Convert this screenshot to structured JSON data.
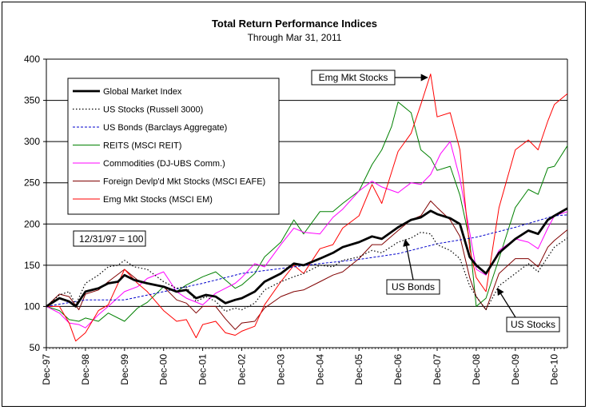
{
  "chart_data": {
    "type": "line",
    "title": "Total Return Performance Indices",
    "subtitle": "Through Mar 31, 2011",
    "xlabel": "",
    "ylabel": "",
    "ylim": [
      50,
      400
    ],
    "yticks": [
      50,
      100,
      150,
      200,
      250,
      300,
      350,
      400
    ],
    "xlim": [
      1997.917,
      2011.25
    ],
    "xticks": [
      "Dec-97",
      "Dec-98",
      "Dec-99",
      "Dec-00",
      "Dec-01",
      "Dec-02",
      "Dec-03",
      "Dec-04",
      "Dec-05",
      "Dec-06",
      "Dec-07",
      "Dec-08",
      "Dec-09",
      "Dec-10"
    ],
    "grid": "horizontal",
    "legend_position": "upper-left",
    "base_note": "12/31/97 = 100",
    "series": [
      {
        "name": "Global Market Index",
        "color": "#000000",
        "style": "bold",
        "x": [
          1997.917,
          1998.25,
          1998.5,
          1998.667,
          1998.917,
          1999.25,
          1999.5,
          1999.75,
          1999.917,
          2000.167,
          2000.5,
          2000.917,
          2001.25,
          2001.5,
          2001.75,
          2002.0,
          2002.25,
          2002.5,
          2002.75,
          2002.917,
          2003.25,
          2003.5,
          2003.917,
          2004.25,
          2004.5,
          2004.917,
          2005.25,
          2005.5,
          2005.917,
          2006.25,
          2006.5,
          2006.917,
          2007.25,
          2007.5,
          2007.75,
          2007.917,
          2008.25,
          2008.5,
          2008.75,
          2008.917,
          2009.167,
          2009.5,
          2009.917,
          2010.25,
          2010.5,
          2010.75,
          2010.917,
          2011.25
        ],
        "y": [
          100,
          110,
          106,
          100,
          118,
          122,
          128,
          130,
          138,
          132,
          128,
          124,
          118,
          120,
          110,
          114,
          112,
          104,
          108,
          110,
          118,
          130,
          140,
          152,
          150,
          158,
          165,
          172,
          178,
          185,
          182,
          196,
          205,
          208,
          216,
          212,
          207,
          200,
          160,
          150,
          140,
          165,
          182,
          192,
          188,
          205,
          210,
          219
        ]
      },
      {
        "name": "US Stocks (Russell 3000)",
        "color": "#000000",
        "style": "dotted",
        "x": [
          1997.917,
          1998.25,
          1998.5,
          1998.667,
          1998.917,
          1999.25,
          1999.5,
          1999.75,
          1999.917,
          2000.167,
          2000.5,
          2000.917,
          2001.25,
          2001.5,
          2001.75,
          2002.0,
          2002.25,
          2002.5,
          2002.75,
          2002.917,
          2003.25,
          2003.5,
          2003.917,
          2004.25,
          2004.5,
          2004.917,
          2005.25,
          2005.5,
          2005.917,
          2006.25,
          2006.5,
          2006.917,
          2007.25,
          2007.5,
          2007.75,
          2007.917,
          2008.25,
          2008.5,
          2008.75,
          2008.917,
          2009.167,
          2009.5,
          2009.917,
          2010.25,
          2010.5,
          2010.75,
          2010.917,
          2011.25
        ],
        "y": [
          100,
          114,
          118,
          102,
          128,
          138,
          148,
          150,
          156,
          148,
          145,
          130,
          122,
          124,
          106,
          112,
          106,
          94,
          98,
          96,
          104,
          120,
          130,
          136,
          140,
          150,
          148,
          156,
          160,
          168,
          165,
          178,
          183,
          190,
          188,
          175,
          168,
          158,
          125,
          112,
          96,
          125,
          140,
          152,
          142,
          160,
          172,
          183
        ]
      },
      {
        "name": "US Bonds (Barclays Aggregate)",
        "color": "#0000cc",
        "style": "dashed",
        "x": [
          1997.917,
          1998.917,
          1999.917,
          2000.917,
          2001.917,
          2002.917,
          2003.917,
          2004.917,
          2005.917,
          2006.917,
          2007.917,
          2008.917,
          2009.917,
          2010.917,
          2011.25
        ],
        "y": [
          100,
          108,
          108,
          118,
          128,
          140,
          146,
          152,
          157,
          164,
          176,
          184,
          196,
          210,
          211
        ]
      },
      {
        "name": "REITS (MSCI REIT)",
        "color": "#008000",
        "style": "solid",
        "x": [
          1997.917,
          1998.25,
          1998.5,
          1998.75,
          1998.917,
          1999.25,
          1999.5,
          1999.917,
          2000.25,
          2000.5,
          2000.917,
          2001.25,
          2001.5,
          2001.917,
          2002.25,
          2002.5,
          2002.75,
          2002.917,
          2003.25,
          2003.5,
          2003.917,
          2004.25,
          2004.5,
          2004.917,
          2005.25,
          2005.5,
          2005.917,
          2006.25,
          2006.5,
          2006.75,
          2006.917,
          2007.25,
          2007.5,
          2007.75,
          2007.917,
          2008.25,
          2008.5,
          2008.75,
          2008.917,
          2009.167,
          2009.5,
          2009.917,
          2010.25,
          2010.5,
          2010.75,
          2010.917,
          2011.25
        ],
        "y": [
          100,
          95,
          84,
          82,
          86,
          82,
          92,
          82,
          98,
          105,
          124,
          118,
          126,
          136,
          142,
          132,
          122,
          126,
          140,
          160,
          178,
          205,
          188,
          215,
          215,
          225,
          240,
          272,
          290,
          318,
          348,
          335,
          290,
          280,
          265,
          270,
          235,
          180,
          100,
          110,
          158,
          220,
          242,
          236,
          268,
          270,
          295
        ]
      },
      {
        "name": "Commodities (DJ-UBS Comm.)",
        "color": "#ff00ff",
        "style": "solid",
        "x": [
          1997.917,
          1998.25,
          1998.5,
          1998.75,
          1998.917,
          1999.25,
          1999.5,
          1999.917,
          2000.25,
          2000.5,
          2000.917,
          2001.25,
          2001.5,
          2001.917,
          2002.25,
          2002.5,
          2002.75,
          2002.917,
          2003.25,
          2003.5,
          2003.917,
          2004.25,
          2004.5,
          2004.917,
          2005.25,
          2005.5,
          2005.917,
          2006.25,
          2006.5,
          2006.917,
          2007.25,
          2007.5,
          2007.75,
          2008.0,
          2008.25,
          2008.5,
          2008.75,
          2008.917,
          2009.167,
          2009.5,
          2009.917,
          2010.25,
          2010.5,
          2010.75,
          2010.917,
          2011.25
        ],
        "y": [
          100,
          92,
          80,
          78,
          74,
          90,
          100,
          118,
          124,
          134,
          142,
          118,
          110,
          102,
          116,
          122,
          128,
          135,
          152,
          148,
          175,
          195,
          190,
          188,
          208,
          218,
          240,
          252,
          245,
          238,
          250,
          248,
          260,
          285,
          300,
          255,
          190,
          145,
          138,
          168,
          182,
          178,
          170,
          195,
          210,
          215
        ]
      },
      {
        "name": "Foreign Devlp'd Mkt Stocks (MSCI EAFE)",
        "color": "#800000",
        "style": "solid",
        "x": [
          1997.917,
          1998.25,
          1998.5,
          1998.75,
          1998.917,
          1999.25,
          1999.5,
          1999.917,
          2000.25,
          2000.5,
          2000.917,
          2001.25,
          2001.5,
          2001.75,
          2001.917,
          2002.25,
          2002.5,
          2002.75,
          2002.917,
          2003.25,
          2003.5,
          2003.917,
          2004.25,
          2004.5,
          2004.917,
          2005.25,
          2005.5,
          2005.917,
          2006.25,
          2006.5,
          2006.917,
          2007.25,
          2007.5,
          2007.75,
          2007.917,
          2008.25,
          2008.5,
          2008.75,
          2008.917,
          2009.167,
          2009.5,
          2009.917,
          2010.25,
          2010.5,
          2010.75,
          2010.917,
          2011.25
        ],
        "y": [
          100,
          115,
          112,
          96,
          115,
          120,
          130,
          145,
          132,
          128,
          124,
          108,
          104,
          92,
          100,
          100,
          85,
          72,
          80,
          82,
          98,
          112,
          118,
          120,
          130,
          138,
          142,
          158,
          175,
          175,
          192,
          205,
          210,
          228,
          220,
          205,
          185,
          135,
          112,
          96,
          140,
          158,
          158,
          148,
          172,
          180,
          193
        ]
      },
      {
        "name": "Emg Mkt Stocks (MSCI EM)",
        "color": "#ff0000",
        "style": "solid",
        "x": [
          1997.917,
          1998.25,
          1998.5,
          1998.667,
          1998.917,
          1999.25,
          1999.5,
          1999.917,
          2000.25,
          2000.5,
          2000.917,
          2001.25,
          2001.5,
          2001.75,
          2001.917,
          2002.25,
          2002.5,
          2002.75,
          2002.917,
          2003.25,
          2003.5,
          2003.917,
          2004.25,
          2004.5,
          2004.917,
          2005.25,
          2005.5,
          2005.917,
          2006.25,
          2006.5,
          2006.917,
          2007.25,
          2007.5,
          2007.75,
          2007.917,
          2008.25,
          2008.5,
          2008.75,
          2008.917,
          2009.167,
          2009.5,
          2009.917,
          2010.25,
          2010.5,
          2010.75,
          2010.917,
          2011.25
        ],
        "y": [
          100,
          100,
          80,
          58,
          68,
          95,
          102,
          145,
          128,
          118,
          95,
          82,
          84,
          62,
          78,
          82,
          68,
          65,
          70,
          76,
          102,
          130,
          150,
          140,
          170,
          175,
          195,
          210,
          248,
          225,
          288,
          310,
          345,
          382,
          330,
          335,
          290,
          170,
          135,
          118,
          220,
          290,
          302,
          290,
          325,
          345,
          358
        ]
      }
    ],
    "annotations": [
      {
        "text": "Emg Mkt Stocks",
        "points_to": "Emg Mkt Stocks (MSCI EM) peak, Oct 2007"
      },
      {
        "text": "US Bonds",
        "points_to": "US Bonds (Barclays Aggregate) line"
      },
      {
        "text": "US Stocks",
        "points_to": "US Stocks (Russell 3000) line near 2009"
      }
    ]
  }
}
